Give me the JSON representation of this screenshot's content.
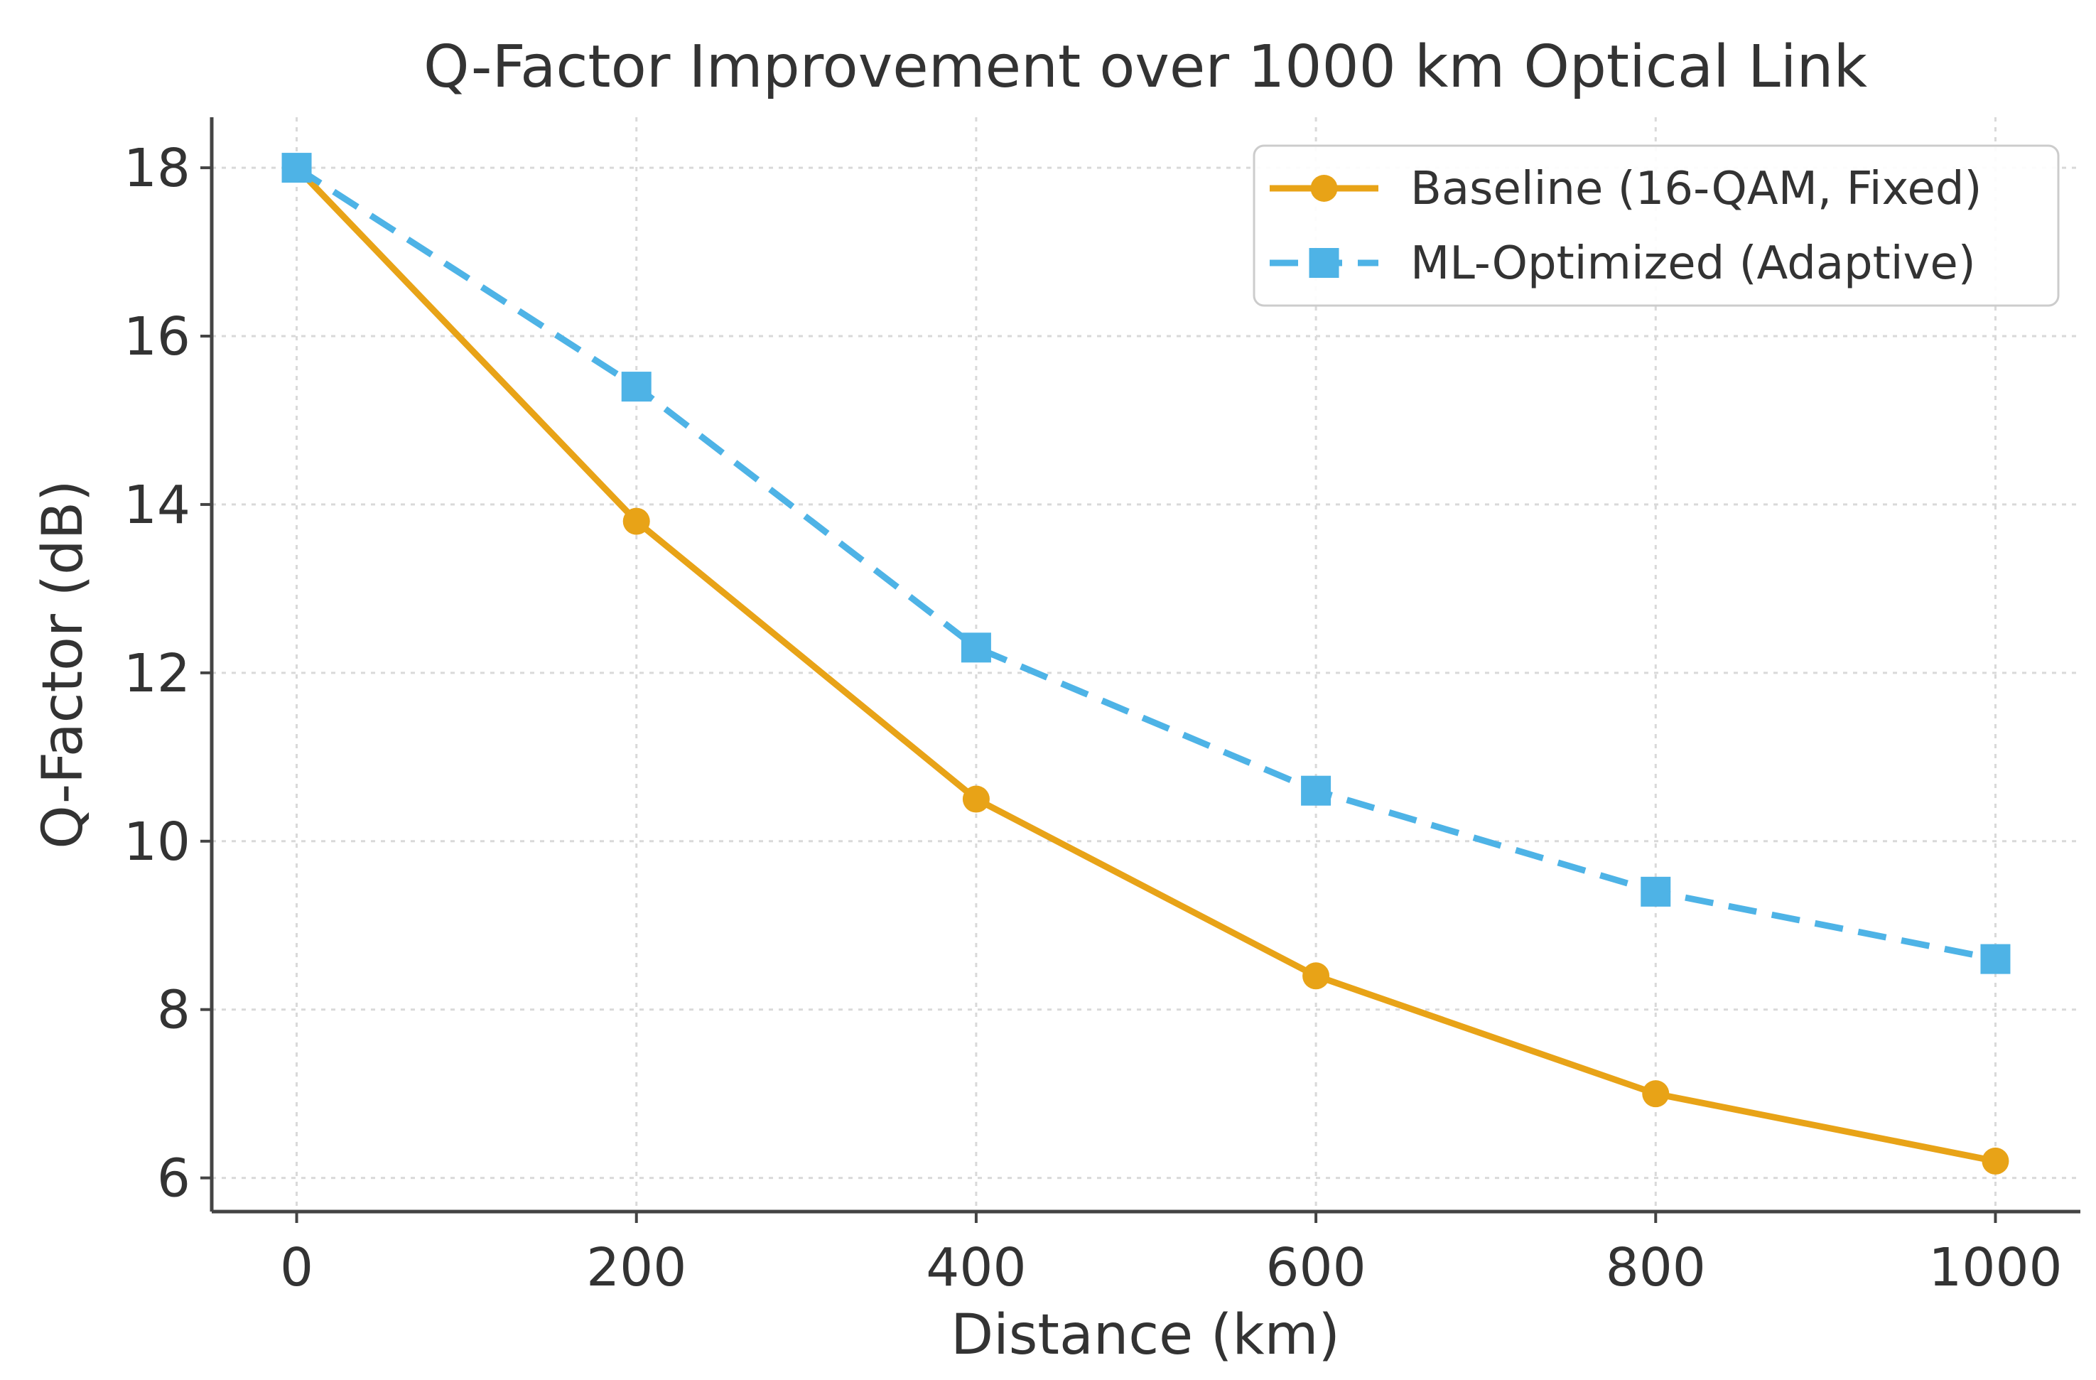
{
  "chart_data": {
    "type": "line",
    "title": "Q-Factor Improvement over 1000 km Optical Link",
    "xlabel": "Distance (km)",
    "ylabel": "Q-Factor (dB)",
    "x": [
      0,
      200,
      400,
      600,
      800,
      1000
    ],
    "xlim": [
      -50,
      1050
    ],
    "ylim": [
      5.6,
      18.6
    ],
    "xticks": [
      0,
      200,
      400,
      600,
      800,
      1000
    ],
    "yticks": [
      6,
      8,
      10,
      12,
      14,
      16,
      18
    ],
    "grid": true,
    "legend_position": "top-right",
    "series": [
      {
        "name": "Baseline (16-QAM, Fixed)",
        "values": [
          18.0,
          13.8,
          10.5,
          8.4,
          7.0,
          6.2
        ],
        "color": "#E8A317",
        "marker": "circle",
        "linestyle": "solid"
      },
      {
        "name": "ML-Optimized (Adaptive)",
        "values": [
          18.0,
          15.4,
          12.3,
          10.6,
          9.4,
          8.6
        ],
        "color": "#4EB3E6",
        "marker": "square",
        "linestyle": "dashed"
      }
    ]
  }
}
